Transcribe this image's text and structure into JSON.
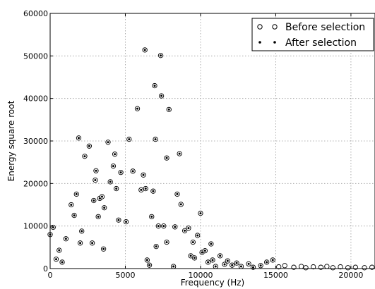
{
  "chart_data": {
    "type": "scatter",
    "title": "",
    "xlabel": "Frequency (Hz)",
    "ylabel": "Energy square root",
    "xlim": [
      0,
      21600
    ],
    "ylim": [
      0,
      60000
    ],
    "x_ticks": [
      0,
      5000,
      10000,
      15000,
      20000
    ],
    "y_ticks": [
      0,
      10000,
      20000,
      30000,
      40000,
      50000,
      60000
    ],
    "x_tick_labels": [
      "0",
      "5000",
      "10000",
      "15000",
      "20000"
    ],
    "y_tick_labels": [
      "0",
      "10000",
      "20000",
      "30000",
      "40000",
      "50000",
      "60000"
    ],
    "grid": true,
    "legend_position": "top-right",
    "series": [
      {
        "name": "Before selection",
        "marker": "open-circle",
        "color": "#000000",
        "points": [
          [
            0,
            8000
          ],
          [
            200,
            9700
          ],
          [
            400,
            2200
          ],
          [
            600,
            4300
          ],
          [
            800,
            1500
          ],
          [
            1050,
            7000
          ],
          [
            1400,
            15000
          ],
          [
            1600,
            12500
          ],
          [
            1750,
            17500
          ],
          [
            1900,
            30700
          ],
          [
            2000,
            6000
          ],
          [
            2100,
            8800
          ],
          [
            2300,
            26400
          ],
          [
            2600,
            28800
          ],
          [
            2800,
            6000
          ],
          [
            2900,
            16000
          ],
          [
            3000,
            20800
          ],
          [
            3050,
            23000
          ],
          [
            3200,
            12200
          ],
          [
            3300,
            16500
          ],
          [
            3450,
            16900
          ],
          [
            3550,
            4600
          ],
          [
            3600,
            14300
          ],
          [
            3850,
            29700
          ],
          [
            4000,
            20400
          ],
          [
            4200,
            24100
          ],
          [
            4300,
            26900
          ],
          [
            4400,
            18800
          ],
          [
            4550,
            11400
          ],
          [
            4700,
            22600
          ],
          [
            5050,
            11000
          ],
          [
            5250,
            30400
          ],
          [
            5500,
            22900
          ],
          [
            5800,
            37600
          ],
          [
            6050,
            18500
          ],
          [
            6200,
            22000
          ],
          [
            6300,
            51400
          ],
          [
            6350,
            18800
          ],
          [
            6450,
            2000
          ],
          [
            6600,
            800
          ],
          [
            6850,
            18200
          ],
          [
            6750,
            12200
          ],
          [
            6950,
            43000
          ],
          [
            7000,
            30400
          ],
          [
            7050,
            5200
          ],
          [
            7200,
            10000
          ],
          [
            7350,
            50100
          ],
          [
            7400,
            40600
          ],
          [
            7550,
            10000
          ],
          [
            7750,
            26000
          ],
          [
            7900,
            37400
          ],
          [
            7750,
            6200
          ],
          [
            8200,
            500
          ],
          [
            8300,
            9800
          ],
          [
            8450,
            17500
          ],
          [
            8600,
            27000
          ],
          [
            8700,
            15100
          ],
          [
            8950,
            8900
          ],
          [
            9200,
            9500
          ],
          [
            9350,
            3000
          ],
          [
            9500,
            6200
          ],
          [
            9600,
            2500
          ],
          [
            9800,
            7800
          ],
          [
            10000,
            13000
          ],
          [
            10100,
            3800
          ],
          [
            10300,
            4200
          ],
          [
            10500,
            1500
          ],
          [
            10700,
            5800
          ],
          [
            10800,
            2000
          ],
          [
            11000,
            500
          ],
          [
            11300,
            3000
          ],
          [
            11600,
            1000
          ],
          [
            11800,
            1800
          ],
          [
            12100,
            800
          ],
          [
            12400,
            1300
          ],
          [
            12700,
            500
          ],
          [
            13200,
            1100
          ],
          [
            13500,
            300
          ],
          [
            14000,
            700
          ],
          [
            14400,
            1500
          ],
          [
            14800,
            2000
          ],
          [
            15200,
            400
          ],
          [
            15600,
            700
          ],
          [
            16200,
            300
          ],
          [
            16700,
            500
          ],
          [
            17000,
            200
          ],
          [
            17500,
            400
          ],
          [
            18000,
            300
          ],
          [
            18400,
            500
          ],
          [
            18800,
            200
          ],
          [
            19300,
            400
          ],
          [
            19800,
            200
          ],
          [
            20300,
            300
          ],
          [
            20900,
            200
          ],
          [
            21400,
            300
          ]
        ]
      },
      {
        "name": "After selection",
        "marker": "dot",
        "color": "#000000",
        "points": [
          [
            0,
            8000
          ],
          [
            200,
            9700
          ],
          [
            400,
            2200
          ],
          [
            600,
            4300
          ],
          [
            800,
            1500
          ],
          [
            1050,
            7000
          ],
          [
            1400,
            15000
          ],
          [
            1600,
            12500
          ],
          [
            1750,
            17500
          ],
          [
            1900,
            30700
          ],
          [
            2000,
            6000
          ],
          [
            2100,
            8800
          ],
          [
            2300,
            26400
          ],
          [
            2600,
            28800
          ],
          [
            2800,
            6000
          ],
          [
            2900,
            16000
          ],
          [
            3000,
            20800
          ],
          [
            3050,
            23000
          ],
          [
            3200,
            12200
          ],
          [
            3300,
            16500
          ],
          [
            3450,
            16900
          ],
          [
            3550,
            4600
          ],
          [
            3600,
            14300
          ],
          [
            3850,
            29700
          ],
          [
            4000,
            20400
          ],
          [
            4200,
            24100
          ],
          [
            4300,
            26900
          ],
          [
            4400,
            18800
          ],
          [
            4550,
            11400
          ],
          [
            4700,
            22600
          ],
          [
            5050,
            11000
          ],
          [
            5250,
            30400
          ],
          [
            5500,
            22900
          ],
          [
            5800,
            37600
          ],
          [
            6050,
            18500
          ],
          [
            6200,
            22000
          ],
          [
            6300,
            51400
          ],
          [
            6350,
            18800
          ],
          [
            6450,
            2000
          ],
          [
            6600,
            800
          ],
          [
            6850,
            18200
          ],
          [
            6750,
            12200
          ],
          [
            6950,
            43000
          ],
          [
            7000,
            30400
          ],
          [
            7050,
            5200
          ],
          [
            7200,
            10000
          ],
          [
            7350,
            50100
          ],
          [
            7400,
            40600
          ],
          [
            7550,
            10000
          ],
          [
            7750,
            26000
          ],
          [
            7900,
            37400
          ],
          [
            7750,
            6200
          ],
          [
            8200,
            500
          ],
          [
            8300,
            9800
          ],
          [
            8450,
            17500
          ],
          [
            8600,
            27000
          ],
          [
            8700,
            15100
          ],
          [
            8950,
            8900
          ],
          [
            9200,
            9500
          ],
          [
            9350,
            3000
          ],
          [
            9500,
            6200
          ],
          [
            9600,
            2500
          ],
          [
            9800,
            7800
          ],
          [
            10000,
            13000
          ],
          [
            10100,
            3800
          ],
          [
            10300,
            4200
          ],
          [
            10500,
            1500
          ],
          [
            10700,
            5800
          ],
          [
            10800,
            2000
          ],
          [
            11000,
            500
          ],
          [
            11300,
            3000
          ],
          [
            11600,
            1000
          ],
          [
            11800,
            1800
          ],
          [
            12100,
            800
          ],
          [
            12400,
            1300
          ],
          [
            12700,
            500
          ],
          [
            13200,
            1100
          ],
          [
            13500,
            300
          ],
          [
            14000,
            700
          ],
          [
            14400,
            1500
          ],
          [
            14800,
            2000
          ]
        ]
      }
    ]
  }
}
